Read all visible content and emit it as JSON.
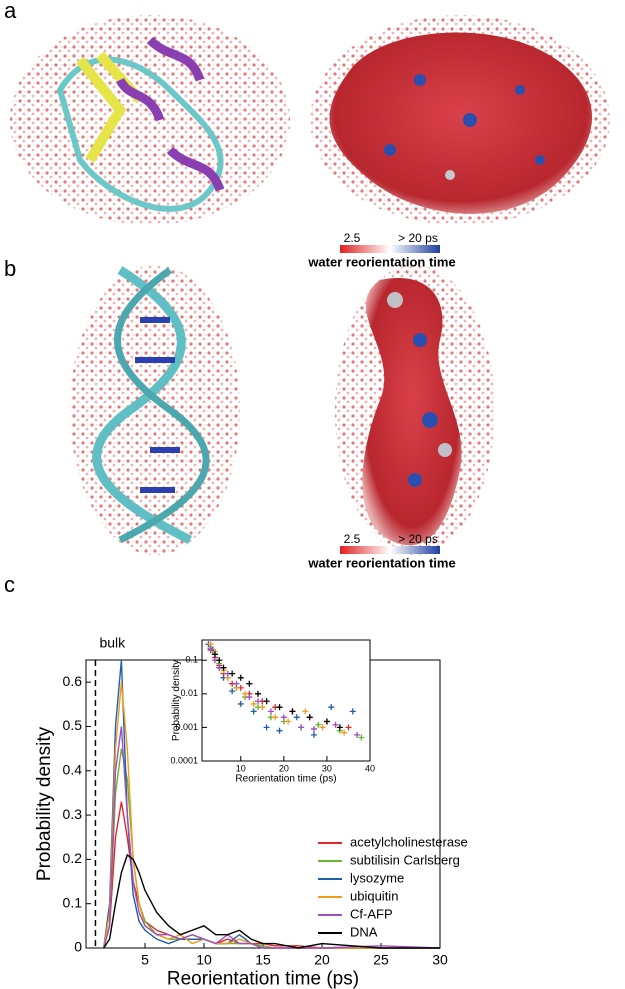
{
  "figure": {
    "panel_labels": [
      "a",
      "b",
      "c"
    ],
    "colorbars": [
      {
        "min_label": "2.5",
        "max_label": "> 20 ps",
        "title": "water reorientation time"
      },
      {
        "min_label": "2.5",
        "max_label": "> 20 ps",
        "title": "water reorientation time"
      }
    ]
  },
  "chart_data": [
    {
      "type": "line",
      "xlabel": "Reorientation time (ps)",
      "ylabel": "Probability density",
      "xlim": [
        0,
        30
      ],
      "ylim": [
        0,
        0.65
      ],
      "xticks": [
        5,
        10,
        15,
        20,
        25,
        30
      ],
      "yticks": [
        0,
        0.1,
        0.2,
        0.3,
        0.4,
        0.5,
        0.6
      ],
      "legend": "lower right",
      "annotation": {
        "text": "bulk",
        "x": 0.8
      },
      "x": [
        1.5,
        2,
        2.5,
        3,
        3.5,
        4,
        4.5,
        5,
        6,
        7,
        8,
        9,
        10,
        11,
        12,
        13,
        14,
        15,
        16,
        18,
        20,
        25,
        30
      ],
      "series": [
        {
          "name": "acetylcholinesterase",
          "color": "#e3262b",
          "values": [
            0,
            0.05,
            0.25,
            0.33,
            0.25,
            0.15,
            0.1,
            0.06,
            0.04,
            0.03,
            0.02,
            0.02,
            0.02,
            0.01,
            0.02,
            0.01,
            0.01,
            0.01,
            0.005,
            0.005,
            0,
            0,
            0
          ]
        },
        {
          "name": "subtilisin Carlsberg",
          "color": "#6ab42d",
          "values": [
            0,
            0.05,
            0.35,
            0.45,
            0.38,
            0.2,
            0.1,
            0.06,
            0.03,
            0.02,
            0.02,
            0.03,
            0.02,
            0.01,
            0.01,
            0.01,
            0.01,
            0.005,
            0,
            0,
            0,
            0,
            0
          ]
        },
        {
          "name": "lysozyme",
          "color": "#1f5fa8",
          "values": [
            0,
            0.1,
            0.5,
            0.65,
            0.3,
            0.12,
            0.06,
            0.04,
            0.02,
            0.01,
            0.02,
            0.02,
            0.02,
            0.01,
            0.01,
            0.03,
            0.01,
            0,
            0,
            0,
            0,
            0,
            0
          ]
        },
        {
          "name": "ubiquitin",
          "color": "#f39a1e",
          "values": [
            0,
            0.08,
            0.45,
            0.6,
            0.45,
            0.2,
            0.1,
            0.05,
            0.03,
            0.02,
            0.03,
            0.01,
            0.02,
            0.01,
            0.01,
            0.02,
            0.01,
            0,
            0,
            0,
            0,
            0,
            0
          ]
        },
        {
          "name": "Cf-AFP",
          "color": "#a04fc0",
          "values": [
            0,
            0.05,
            0.4,
            0.5,
            0.3,
            0.15,
            0.08,
            0.05,
            0.03,
            0.03,
            0.02,
            0.03,
            0.02,
            0.01,
            0.03,
            0.01,
            0.01,
            0,
            0,
            0,
            0,
            0.005,
            0
          ]
        },
        {
          "name": "DNA",
          "color": "#000000",
          "values": [
            0,
            0.02,
            0.1,
            0.17,
            0.21,
            0.2,
            0.17,
            0.13,
            0.08,
            0.05,
            0.03,
            0.04,
            0.05,
            0.03,
            0.03,
            0.04,
            0.02,
            0.01,
            0.01,
            0,
            0.01,
            0,
            0
          ]
        }
      ]
    },
    {
      "type": "scatter",
      "xlabel": "Reorientation time (ps)",
      "ylabel": "Probability density",
      "log_y": true,
      "xlim": [
        1,
        40
      ],
      "ylim": [
        0.0001,
        0.4
      ],
      "xticks": [
        10,
        20,
        30,
        40
      ],
      "yticks": [
        0.0001,
        0.001,
        0.01,
        0.1
      ],
      "series": [
        {
          "color": "#e3262b",
          "x": [
            3,
            4,
            5,
            6,
            8,
            10,
            12,
            15,
            18,
            22,
            26,
            30,
            35
          ],
          "values": [
            0.2,
            0.12,
            0.07,
            0.04,
            0.02,
            0.015,
            0.01,
            0.006,
            0.004,
            0.003,
            0.002,
            0.0015,
            0.001
          ]
        },
        {
          "color": "#6ab42d",
          "x": [
            3,
            4,
            5,
            7,
            9,
            11,
            14,
            17,
            20,
            24,
            28,
            33,
            38
          ],
          "values": [
            0.25,
            0.15,
            0.08,
            0.03,
            0.015,
            0.008,
            0.004,
            0.002,
            0.0015,
            0.001,
            0.0012,
            0.0008,
            0.0005
          ]
        },
        {
          "color": "#1f5fa8",
          "x": [
            2.5,
            3.5,
            5,
            6,
            8,
            10,
            13,
            16,
            19,
            23,
            27,
            31,
            36
          ],
          "values": [
            0.3,
            0.2,
            0.06,
            0.03,
            0.012,
            0.005,
            0.003,
            0.001,
            0.0008,
            0.002,
            0.0006,
            0.004,
            0.003
          ]
        },
        {
          "color": "#f39a1e",
          "x": [
            3,
            4,
            6,
            7,
            9,
            11,
            13,
            15,
            18,
            21,
            25,
            29,
            34
          ],
          "values": [
            0.3,
            0.18,
            0.05,
            0.03,
            0.015,
            0.01,
            0.005,
            0.004,
            0.002,
            0.0015,
            0.003,
            0.001,
            0.0007
          ]
        },
        {
          "color": "#a04fc0",
          "x": [
            3,
            4,
            5,
            7,
            9,
            12,
            14,
            17,
            20,
            24,
            27,
            32,
            37
          ],
          "values": [
            0.22,
            0.1,
            0.06,
            0.04,
            0.02,
            0.008,
            0.006,
            0.003,
            0.002,
            0.001,
            0.0009,
            0.0012,
            0.0006
          ]
        },
        {
          "color": "#000000",
          "x": [
            4,
            5,
            6,
            8,
            10,
            12,
            14,
            16,
            19,
            22,
            26,
            30,
            33
          ],
          "values": [
            0.15,
            0.1,
            0.06,
            0.04,
            0.03,
            0.02,
            0.01,
            0.006,
            0.004,
            0.003,
            0.002,
            0.0015,
            0.001
          ]
        }
      ]
    }
  ]
}
